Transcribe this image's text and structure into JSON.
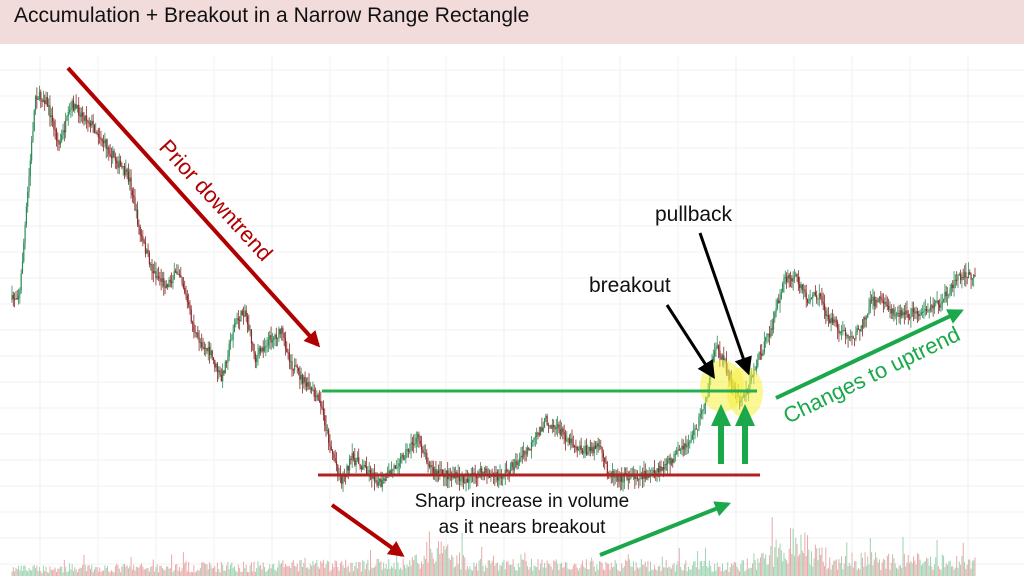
{
  "title": "Accumulation + Breakout in a Narrow Range Rectangle",
  "colors": {
    "up_candle": "#2e8b57",
    "down_candle": "#8b2a2a",
    "resistance_line": "#22b14c",
    "support_line": "#b22222",
    "highlight": "#f5f03c",
    "title_bg": "#f2dcdb"
  },
  "annotations": {
    "prior_downtrend": "Prior downtrend",
    "pullback": "pullback",
    "breakout": "breakout",
    "volume_line1": "Sharp increase in volume",
    "volume_line2": "as it nears breakout",
    "uptrend": "Changes to uptrend"
  },
  "chart_data": {
    "type": "candlestick",
    "title": "Accumulation + Breakout in a Narrow Range Rectangle",
    "grid": true,
    "legend": "none",
    "price_path": [
      [
        0,
        240
      ],
      [
        6,
        232
      ],
      [
        18,
        35
      ],
      [
        26,
        40
      ],
      [
        36,
        85
      ],
      [
        46,
        45
      ],
      [
        60,
        62
      ],
      [
        74,
        90
      ],
      [
        82,
        105
      ],
      [
        90,
        120
      ],
      [
        98,
        175
      ],
      [
        108,
        212
      ],
      [
        118,
        225
      ],
      [
        128,
        210
      ],
      [
        140,
        275
      ],
      [
        152,
        295
      ],
      [
        160,
        320
      ],
      [
        170,
        265
      ],
      [
        178,
        250
      ],
      [
        186,
        298
      ],
      [
        196,
        280
      ],
      [
        206,
        272
      ],
      [
        214,
        305
      ],
      [
        222,
        320
      ],
      [
        228,
        330
      ],
      [
        236,
        345
      ],
      [
        244,
        390
      ],
      [
        252,
        420
      ],
      [
        260,
        398
      ],
      [
        270,
        408
      ],
      [
        282,
        425
      ],
      [
        296,
        400
      ],
      [
        310,
        378
      ],
      [
        322,
        412
      ],
      [
        334,
        415
      ],
      [
        346,
        420
      ],
      [
        360,
        412
      ],
      [
        372,
        418
      ],
      [
        384,
        405
      ],
      [
        396,
        388
      ],
      [
        408,
        360
      ],
      [
        420,
        372
      ],
      [
        430,
        385
      ],
      [
        440,
        392
      ],
      [
        448,
        385
      ],
      [
        456,
        412
      ],
      [
        466,
        418
      ],
      [
        478,
        415
      ],
      [
        490,
        415
      ],
      [
        500,
        405
      ],
      [
        508,
        395
      ],
      [
        516,
        385
      ],
      [
        524,
        365
      ],
      [
        532,
        330
      ],
      [
        538,
        285
      ],
      [
        544,
        300
      ],
      [
        550,
        325
      ],
      [
        556,
        338
      ],
      [
        562,
        330
      ],
      [
        570,
        300
      ],
      [
        580,
        270
      ],
      [
        590,
        220
      ],
      [
        600,
        218
      ],
      [
        608,
        240
      ],
      [
        616,
        235
      ],
      [
        624,
        258
      ],
      [
        632,
        270
      ],
      [
        642,
        278
      ],
      [
        650,
        265
      ],
      [
        656,
        242
      ],
      [
        664,
        240
      ],
      [
        672,
        250
      ],
      [
        682,
        255
      ],
      [
        692,
        252
      ],
      [
        700,
        250
      ],
      [
        710,
        242
      ],
      [
        720,
        222
      ],
      [
        728,
        212
      ],
      [
        736,
        218
      ]
    ],
    "volume_profile": [
      [
        0,
        0.15
      ],
      [
        300,
        0.25
      ],
      [
        330,
        0.55
      ],
      [
        350,
        0.25
      ],
      [
        560,
        0.22
      ],
      [
        580,
        0.45
      ],
      [
        600,
        0.8
      ],
      [
        620,
        0.35
      ],
      [
        736,
        0.3
      ]
    ]
  }
}
